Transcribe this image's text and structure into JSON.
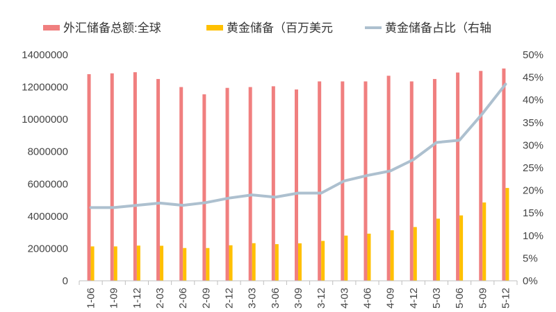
{
  "chart_data": {
    "type": "bar",
    "categories": [
      "1-06",
      "1-09",
      "1-12",
      "2-03",
      "2-06",
      "2-09",
      "2-12",
      "3-03",
      "3-06",
      "3-09",
      "3-12",
      "4-03",
      "4-06",
      "4-09",
      "4-12",
      "5-03",
      "5-06",
      "5-09",
      "5-12"
    ],
    "series": [
      {
        "name": "外汇储备总额:全球",
        "type": "bar",
        "axis": "left",
        "color": "#f07f7f",
        "values": [
          12800000,
          12850000,
          12920000,
          12500000,
          12000000,
          11550000,
          11950000,
          12000000,
          12050000,
          11850000,
          12350000,
          12350000,
          12350000,
          12700000,
          12350000,
          12500000,
          12900000,
          13000000,
          13150000
        ]
      },
      {
        "name": "黄金储备（百万美元",
        "type": "bar",
        "axis": "left",
        "color": "#ffc000",
        "values": [
          2130000,
          2130000,
          2180000,
          2170000,
          2030000,
          2030000,
          2200000,
          2330000,
          2270000,
          2320000,
          2470000,
          2800000,
          2920000,
          3130000,
          3330000,
          3850000,
          4050000,
          4850000,
          5750000
        ]
      },
      {
        "name": "黄金储备占比（右轴",
        "type": "line",
        "axis": "right",
        "color": "#adc0cf",
        "values": [
          16.2,
          16.2,
          16.7,
          17.2,
          16.7,
          17.3,
          18.3,
          19.0,
          18.5,
          19.4,
          19.4,
          22.1,
          23.3,
          24.3,
          26.8,
          30.6,
          31.1,
          37.0,
          43.5
        ]
      }
    ],
    "y_left": {
      "min": 0,
      "max": 14000000,
      "step": 2000000
    },
    "y_right": {
      "min": 0,
      "max": 50,
      "step": 5,
      "unit": "%"
    },
    "legend_position": "top",
    "grid": false
  }
}
